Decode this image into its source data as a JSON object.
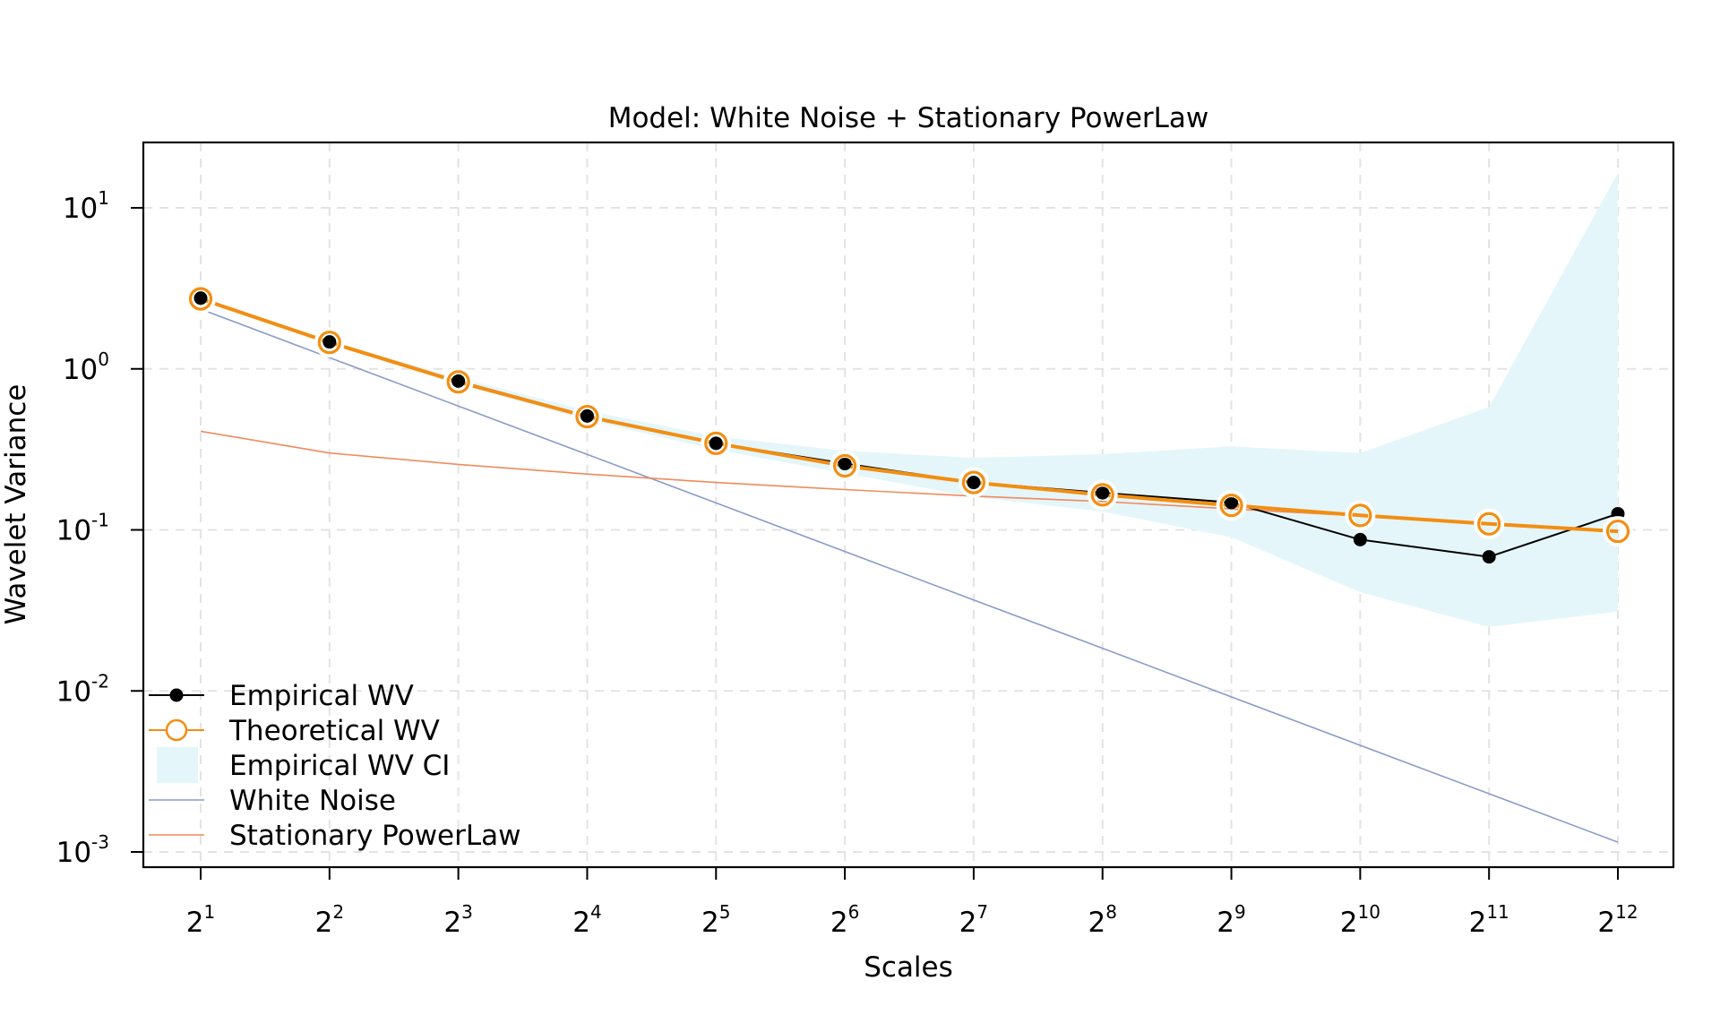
{
  "chart_data": {
    "type": "line",
    "title": "Model: White Noise + Stationary PowerLaw",
    "xlabel": "Scales",
    "ylabel": "Wavelet Variance",
    "x_scale": "log2",
    "y_scale": "log10",
    "x": [
      2,
      4,
      8,
      16,
      32,
      64,
      128,
      256,
      512,
      1024,
      2048,
      4096
    ],
    "x_ticks": [
      {
        "base": "2",
        "exp": "1"
      },
      {
        "base": "2",
        "exp": "2"
      },
      {
        "base": "2",
        "exp": "3"
      },
      {
        "base": "2",
        "exp": "4"
      },
      {
        "base": "2",
        "exp": "5"
      },
      {
        "base": "2",
        "exp": "6"
      },
      {
        "base": "2",
        "exp": "7"
      },
      {
        "base": "2",
        "exp": "8"
      },
      {
        "base": "2",
        "exp": "9"
      },
      {
        "base": "2",
        "exp": "10"
      },
      {
        "base": "2",
        "exp": "11"
      },
      {
        "base": "2",
        "exp": "12"
      }
    ],
    "y_ticks": [
      {
        "base": "10",
        "exp": "1",
        "value": 10
      },
      {
        "base": "10",
        "exp": "0",
        "value": 1
      },
      {
        "base": "10",
        "exp": "-1",
        "value": 0.1
      },
      {
        "base": "10",
        "exp": "-2",
        "value": 0.01
      },
      {
        "base": "10",
        "exp": "-3",
        "value": 0.001
      }
    ],
    "xlim": [
      2,
      4096
    ],
    "ylim": [
      0.0006,
      26
    ],
    "grid": true,
    "legend_position": "bottom-left",
    "series": [
      {
        "name": "Empirical WV",
        "color": "#000000",
        "marker": "filled-circle",
        "values": [
          2.75,
          1.47,
          0.84,
          0.51,
          0.345,
          0.258,
          0.197,
          0.17,
          0.148,
          0.087,
          0.068,
          0.126
        ]
      },
      {
        "name": "Theoretical WV",
        "color": "#f28e12",
        "marker": "open-circle",
        "values": [
          2.72,
          1.46,
          0.83,
          0.505,
          0.345,
          0.25,
          0.197,
          0.165,
          0.142,
          0.123,
          0.109,
          0.098
        ]
      },
      {
        "name": "White Noise",
        "color": "#8a9bcb",
        "marker": "none",
        "values": [
          2.35,
          1.175,
          0.5875,
          0.294,
          0.147,
          0.0734,
          0.0367,
          0.0184,
          0.00918,
          0.00459,
          0.0023,
          0.00115
        ]
      },
      {
        "name": "Stationary PowerLaw",
        "color": "#f08a5d",
        "marker": "none",
        "values": [
          0.41,
          0.3,
          0.255,
          0.222,
          0.197,
          0.178,
          0.162,
          0.15,
          0.135,
          0.122,
          0.11,
          0.098
        ]
      }
    ],
    "ci": {
      "name": "Empirical WV CI",
      "color": "#e4f6fa",
      "lower": [
        2.7,
        1.43,
        0.8,
        0.48,
        0.315,
        0.225,
        0.16,
        0.13,
        0.09,
        0.041,
        0.025,
        0.031
      ],
      "upper": [
        2.8,
        1.5,
        0.88,
        0.55,
        0.38,
        0.31,
        0.28,
        0.295,
        0.33,
        0.3,
        0.58,
        16.5
      ]
    }
  }
}
